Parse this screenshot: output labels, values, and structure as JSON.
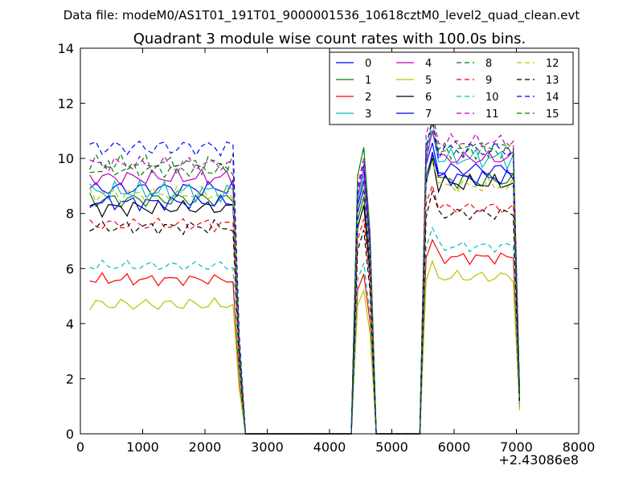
{
  "figure": {
    "supertitle": "Data file: modeM0/AS1T01_191T01_9000001536_10618cztM0_level2_quad_clean.evt"
  },
  "chart_data": {
    "type": "line",
    "title": "Quadrant 3 module wise count rates with 100.0s bins.",
    "xlabel": "",
    "ylabel": "",
    "x_offset_label": "+2.43086e8",
    "xlim": [
      0,
      8000
    ],
    "ylim": [
      0,
      14
    ],
    "xticks": [
      "0",
      "1000",
      "2000",
      "3000",
      "4000",
      "5000",
      "6000",
      "7000",
      "8000"
    ],
    "yticks": [
      "0",
      "2",
      "4",
      "6",
      "8",
      "10",
      "12",
      "14"
    ],
    "grid": false,
    "legend_position": "top-right",
    "legend_columns": 4,
    "segment1_x": [
      150,
      250,
      350,
      450,
      550,
      650,
      750,
      850,
      950,
      1050,
      1150,
      1250,
      1350,
      1450,
      1550,
      1650,
      1750,
      1850,
      1950,
      2050,
      2150,
      2250,
      2350,
      2450
    ],
    "segment1_tail_x": [
      2550,
      2650
    ],
    "segment2_x": [
      4350,
      4450,
      4550,
      4650,
      4750
    ],
    "segment3_x": [
      5450,
      5550,
      5650,
      5750,
      5850,
      5950,
      6050,
      6150,
      6250,
      6350,
      6450,
      6550,
      6650,
      6750,
      6850,
      6950,
      7050
    ],
    "series": [
      {
        "name": "0",
        "color": "#0000ff",
        "dashed": false,
        "level1": 8.9,
        "level2": 9.2,
        "level3": 9.6,
        "amp": 0.35
      },
      {
        "name": "1",
        "color": "#008000",
        "dashed": false,
        "level1": 8.5,
        "level2": 8.6,
        "level3": 9.2,
        "amp": 0.35
      },
      {
        "name": "2",
        "color": "#ff0000",
        "dashed": false,
        "level1": 5.6,
        "level2": 5.8,
        "level3": 6.4,
        "amp": 0.25
      },
      {
        "name": "3",
        "color": "#00bfbf",
        "dashed": false,
        "level1": 8.8,
        "level2": 9.4,
        "level3": 10.0,
        "amp": 0.4
      },
      {
        "name": "4",
        "color": "#bf00bf",
        "dashed": false,
        "level1": 9.3,
        "level2": 9.6,
        "level3": 10.0,
        "amp": 0.35
      },
      {
        "name": "5",
        "color": "#bfbf00",
        "dashed": false,
        "level1": 4.7,
        "level2": 5.2,
        "level3": 5.7,
        "amp": 0.3
      },
      {
        "name": "6",
        "color": "#000000",
        "dashed": false,
        "level1": 8.2,
        "level2": 8.3,
        "level3": 9.1,
        "amp": 0.35
      },
      {
        "name": "7",
        "color": "#0000ff",
        "dashed": false,
        "level1": 8.4,
        "level2": 8.9,
        "level3": 9.3,
        "amp": 0.3
      },
      {
        "name": "8",
        "color": "#008000",
        "dashed": true,
        "level1": 9.8,
        "level2": 10.4,
        "level3": 10.4,
        "amp": 0.4
      },
      {
        "name": "9",
        "color": "#ff0000",
        "dashed": true,
        "level1": 7.6,
        "level2": 7.8,
        "level3": 8.2,
        "amp": 0.3
      },
      {
        "name": "10",
        "color": "#00bfbf",
        "dashed": true,
        "level1": 6.1,
        "level2": 6.2,
        "level3": 6.8,
        "amp": 0.25
      },
      {
        "name": "11",
        "color": "#bf00bf",
        "dashed": true,
        "level1": 9.8,
        "level2": 10.0,
        "level3": 10.6,
        "amp": 0.3
      },
      {
        "name": "12",
        "color": "#bfbf00",
        "dashed": true,
        "level1": 8.7,
        "level2": 9.0,
        "level3": 9.0,
        "amp": 0.3
      },
      {
        "name": "13",
        "color": "#000000",
        "dashed": true,
        "level1": 7.5,
        "level2": 7.4,
        "level3": 8.0,
        "amp": 0.3
      },
      {
        "name": "14",
        "color": "#0000ff",
        "dashed": true,
        "level1": 10.4,
        "level2": 9.8,
        "level3": 10.3,
        "amp": 0.4
      },
      {
        "name": "15",
        "color": "#008000",
        "dashed": true,
        "level1": 9.6,
        "level2": 10.4,
        "level3": 10.3,
        "amp": 0.35
      }
    ]
  }
}
